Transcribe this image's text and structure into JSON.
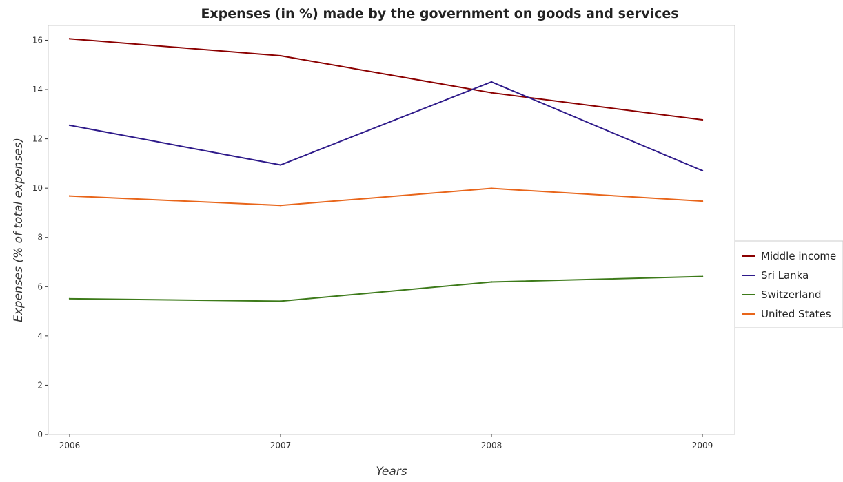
{
  "chart_data": {
    "type": "line",
    "title": "Expenses (in %) made by the government on goods and services",
    "xlabel": "Years",
    "ylabel": "Expenses (% of total expenses)",
    "categories": [
      "2006",
      "2007",
      "2008",
      "2009"
    ],
    "ylim": [
      0,
      16.6
    ],
    "yticks": [
      0,
      2,
      4,
      6,
      8,
      10,
      12,
      14,
      16
    ],
    "ytick_labels": [
      "0",
      "2",
      "4",
      "6",
      "8",
      "10",
      "12",
      "14",
      "16"
    ],
    "legend_position": "right",
    "series": [
      {
        "name": "Middle income",
        "color": "#8b0000",
        "values": [
          16.06,
          15.37,
          13.87,
          12.77
        ]
      },
      {
        "name": "Sri Lanka",
        "color": "#2e1a8a",
        "values": [
          12.55,
          10.94,
          14.31,
          10.71
        ]
      },
      {
        "name": "Switzerland",
        "color": "#3d7a1a",
        "values": [
          5.51,
          5.41,
          6.19,
          6.41
        ]
      },
      {
        "name": "United States",
        "color": "#e8651a",
        "values": [
          9.68,
          9.3,
          9.99,
          9.47
        ]
      }
    ]
  }
}
